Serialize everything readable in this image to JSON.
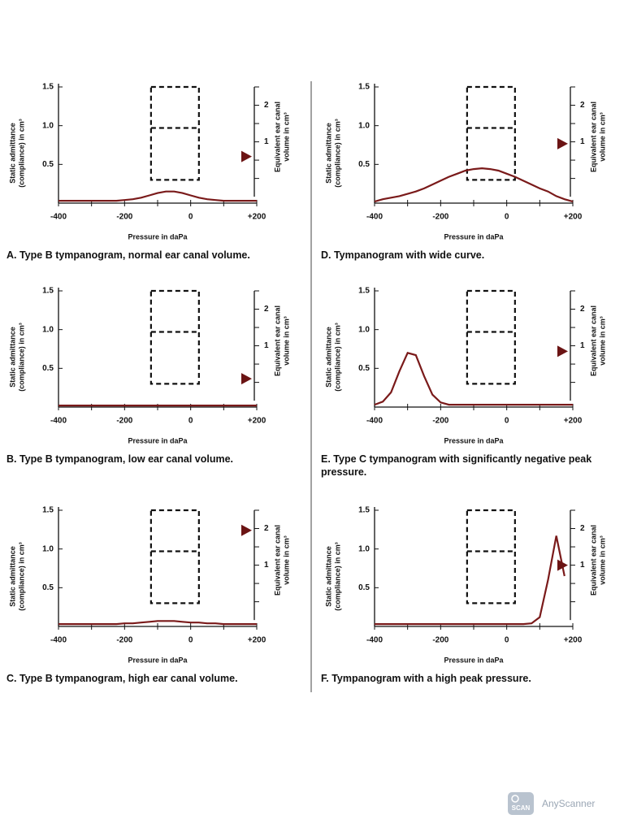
{
  "chart_data": [
    {
      "type": "line",
      "caption": "A. Type B tympanogram, normal ear canal volume.",
      "xlabel": "Pressure in daPa",
      "ylabel": [
        "Static admittance",
        "(compliance) in cm³"
      ],
      "y2label": [
        "Equivalent ear canal",
        "volume in cm³"
      ],
      "xlim": [
        -400,
        200
      ],
      "xticks": [
        -400,
        -200,
        0,
        {
          "value": 200,
          "label": "+200"
        }
      ],
      "xminorticks": [
        -300,
        -100,
        100
      ],
      "ylim": [
        0,
        1.5
      ],
      "yticks": [
        0.5,
        {
          "value": 1,
          "label": "1.0"
        },
        1.5
      ],
      "y2lim": [
        -0.5,
        2.5
      ],
      "y2ticks": [
        1,
        2
      ],
      "y2minorticks": [
        0,
        0.5,
        1.5,
        2.5
      ],
      "normal_region": {
        "x": [
          -120,
          25
        ],
        "y": [
          0.3,
          1.5
        ],
        "split": 0.97
      },
      "marker": {
        "value": 0.6,
        "color": "#6b1414"
      },
      "x": [
        -400,
        -375,
        -350,
        -325,
        -300,
        -275,
        -250,
        -225,
        -200,
        -175,
        -150,
        -125,
        -100,
        -75,
        -50,
        -25,
        0,
        25,
        50,
        75,
        100,
        125,
        150,
        175,
        200
      ],
      "series": [
        {
          "color": "#7a1a1a",
          "values": [
            0.03,
            0.03,
            0.03,
            0.03,
            0.03,
            0.03,
            0.03,
            0.03,
            0.04,
            0.05,
            0.07,
            0.1,
            0.13,
            0.15,
            0.15,
            0.13,
            0.1,
            0.07,
            0.05,
            0.04,
            0.03,
            0.03,
            0.03,
            0.03,
            0.03
          ]
        }
      ]
    },
    {
      "type": "line",
      "caption": "B. Type B tympanogram, low ear canal volume.",
      "xlabel": "Pressure in daPa",
      "ylabel": [
        "Static admittance",
        "(compliance) in cm³"
      ],
      "y2label": [
        "Equivalent ear canal",
        "volume in cm³"
      ],
      "xlim": [
        -400,
        200
      ],
      "xticks": [
        -400,
        -200,
        0,
        {
          "value": 200,
          "label": "+200"
        }
      ],
      "xminorticks": [
        -300,
        -100,
        100
      ],
      "ylim": [
        0,
        1.5
      ],
      "yticks": [
        0.5,
        {
          "value": 1,
          "label": "1.0"
        },
        1.5
      ],
      "y2lim": [
        -0.5,
        2.5
      ],
      "y2ticks": [
        1,
        2
      ],
      "y2minorticks": [
        0,
        0.5,
        1.5,
        2.5
      ],
      "normal_region": {
        "x": [
          -120,
          25
        ],
        "y": [
          0.3,
          1.5
        ],
        "split": 0.97
      },
      "marker": {
        "value": 0.1,
        "color": "#6b1414"
      },
      "x": [
        -400,
        -375,
        -350,
        -325,
        -300,
        -275,
        -250,
        -225,
        -200,
        -175,
        -150,
        -125,
        -100,
        -75,
        -50,
        -25,
        0,
        25,
        50,
        75,
        100,
        125,
        150,
        175,
        200
      ],
      "series": [
        {
          "color": "#7a1a1a",
          "values": [
            0.02,
            0.02,
            0.02,
            0.02,
            0.02,
            0.02,
            0.02,
            0.02,
            0.02,
            0.02,
            0.02,
            0.02,
            0.02,
            0.02,
            0.02,
            0.02,
            0.02,
            0.02,
            0.02,
            0.02,
            0.02,
            0.02,
            0.02,
            0.02,
            0.02
          ]
        }
      ]
    },
    {
      "type": "line",
      "caption": "C. Type B tympanogram, high ear canal volume.",
      "xlabel": "Pressure in daPa",
      "ylabel": [
        "Static admittance",
        "(compliance) in cm³"
      ],
      "y2label": [
        "Equivalent ear canal",
        "volume in cm³"
      ],
      "xlim": [
        -400,
        200
      ],
      "xticks": [
        -400,
        -200,
        0,
        {
          "value": 200,
          "label": "+200"
        }
      ],
      "xminorticks": [
        -300,
        -100,
        100
      ],
      "ylim": [
        0,
        1.5
      ],
      "yticks": [
        0.5,
        {
          "value": 1,
          "label": "1.0"
        },
        1.5
      ],
      "y2lim": [
        -0.5,
        2.5
      ],
      "y2ticks": [
        1,
        2
      ],
      "y2minorticks": [
        0,
        0.5,
        1.5,
        2.5
      ],
      "normal_region": {
        "x": [
          -120,
          25
        ],
        "y": [
          0.3,
          1.5
        ],
        "split": 0.97
      },
      "marker": {
        "value": 1.95,
        "color": "#6b1414"
      },
      "x": [
        -400,
        -375,
        -350,
        -325,
        -300,
        -275,
        -250,
        -225,
        -200,
        -175,
        -150,
        -125,
        -100,
        -75,
        -50,
        -25,
        0,
        25,
        50,
        75,
        100,
        125,
        150,
        175,
        200
      ],
      "series": [
        {
          "color": "#7a1a1a",
          "values": [
            0.03,
            0.03,
            0.03,
            0.03,
            0.03,
            0.03,
            0.03,
            0.03,
            0.04,
            0.04,
            0.05,
            0.06,
            0.07,
            0.07,
            0.07,
            0.06,
            0.05,
            0.05,
            0.04,
            0.04,
            0.03,
            0.03,
            0.03,
            0.03,
            0.03
          ]
        }
      ]
    },
    {
      "type": "line",
      "caption": "D. Tympanogram with wide curve.",
      "xlabel": "Pressure in daPa",
      "ylabel": [
        "Static admittance",
        "(compliance) in cm³"
      ],
      "y2label": [
        "Equivalent ear canal",
        "volume in cm³"
      ],
      "xlim": [
        -400,
        200
      ],
      "xticks": [
        -400,
        -200,
        0,
        {
          "value": 200,
          "label": "+200"
        }
      ],
      "xminorticks": [
        -300,
        -100,
        100
      ],
      "ylim": [
        0,
        1.5
      ],
      "yticks": [
        0.5,
        {
          "value": 1,
          "label": "1.0"
        },
        1.5
      ],
      "y2lim": [
        -0.5,
        2.5
      ],
      "y2ticks": [
        1,
        2
      ],
      "y2minorticks": [
        0,
        0.5,
        1.5,
        2.5
      ],
      "normal_region": {
        "x": [
          -120,
          25
        ],
        "y": [
          0.3,
          1.5
        ],
        "split": 0.97
      },
      "marker": {
        "value": 0.95,
        "color": "#6b1414"
      },
      "x": [
        -400,
        -375,
        -350,
        -325,
        -300,
        -275,
        -250,
        -225,
        -200,
        -175,
        -150,
        -125,
        -100,
        -75,
        -50,
        -25,
        0,
        25,
        50,
        75,
        100,
        125,
        150,
        175,
        200
      ],
      "series": [
        {
          "color": "#7a1a1a",
          "values": [
            0.02,
            0.05,
            0.07,
            0.09,
            0.12,
            0.15,
            0.19,
            0.24,
            0.29,
            0.34,
            0.38,
            0.42,
            0.44,
            0.45,
            0.44,
            0.42,
            0.38,
            0.34,
            0.29,
            0.24,
            0.19,
            0.15,
            0.09,
            0.05,
            0.02
          ]
        }
      ]
    },
    {
      "type": "line",
      "caption": "E. Type C tympanogram with significantly negative peak pressure.",
      "xlabel": "Pressure in daPa",
      "ylabel": [
        "Static admittance",
        "(compliance) in cm³"
      ],
      "y2label": [
        "Equivalent ear canal",
        "volume in cm³"
      ],
      "xlim": [
        -400,
        200
      ],
      "xticks": [
        -400,
        -200,
        0,
        {
          "value": 200,
          "label": "+200"
        }
      ],
      "xminorticks": [
        -300,
        -100,
        100
      ],
      "ylim": [
        0,
        1.5
      ],
      "yticks": [
        0.5,
        {
          "value": 1,
          "label": "1.0"
        },
        1.5
      ],
      "y2lim": [
        -0.5,
        2.5
      ],
      "y2ticks": [
        1,
        2
      ],
      "y2minorticks": [
        0,
        0.5,
        1.5,
        2.5
      ],
      "normal_region": {
        "x": [
          -120,
          25
        ],
        "y": [
          0.3,
          1.5
        ],
        "split": 0.97
      },
      "marker": {
        "value": 0.85,
        "color": "#6b1414"
      },
      "x": [
        -400,
        -375,
        -350,
        -325,
        -300,
        -275,
        -250,
        -225,
        -200,
        -175,
        -150,
        -125,
        -100,
        -75,
        -50,
        -25,
        0,
        25,
        50,
        75,
        100,
        125,
        150,
        175,
        200
      ],
      "series": [
        {
          "color": "#7a1a1a",
          "values": [
            0.03,
            0.07,
            0.19,
            0.46,
            0.7,
            0.67,
            0.4,
            0.16,
            0.06,
            0.03,
            0.03,
            0.03,
            0.03,
            0.03,
            0.03,
            0.03,
            0.03,
            0.03,
            0.03,
            0.03,
            0.03,
            0.03,
            0.03,
            0.03,
            0.03
          ]
        }
      ]
    },
    {
      "type": "line",
      "caption": "F. Tympanogram with a high peak pressure.",
      "xlabel": "Pressure in daPa",
      "ylabel": [
        "Static admittance",
        "(compliance) in cm³"
      ],
      "y2label": [
        "Equivalent ear canal",
        "volume in cm³"
      ],
      "xlim": [
        -400,
        200
      ],
      "xticks": [
        -400,
        -200,
        0,
        {
          "value": 200,
          "label": "+200"
        }
      ],
      "xminorticks": [
        -300,
        -100,
        100
      ],
      "ylim": [
        0,
        1.5
      ],
      "yticks": [
        0.5,
        {
          "value": 1,
          "label": "1.0"
        },
        1.5
      ],
      "y2lim": [
        -0.5,
        2.5
      ],
      "y2ticks": [
        1,
        2
      ],
      "y2minorticks": [
        0,
        0.5,
        1.5,
        2.5
      ],
      "normal_region": {
        "x": [
          -120,
          25
        ],
        "y": [
          0.3,
          1.5
        ],
        "split": 0.97
      },
      "marker": {
        "value": 1.0,
        "color": "#6b1414"
      },
      "x": [
        -400,
        -375,
        -350,
        -325,
        -300,
        -275,
        -250,
        -225,
        -200,
        -175,
        -150,
        -125,
        -100,
        -75,
        -50,
        -25,
        0,
        25,
        50,
        75,
        100,
        125,
        150,
        175,
        200
      ],
      "series": [
        {
          "color": "#7a1a1a",
          "values": [
            0.03,
            0.03,
            0.03,
            0.03,
            0.03,
            0.03,
            0.03,
            0.03,
            0.03,
            0.03,
            0.03,
            0.03,
            0.03,
            0.03,
            0.03,
            0.03,
            0.03,
            0.03,
            0.03,
            0.04,
            0.12,
            0.6,
            1.17,
            0.65,
            null
          ]
        }
      ]
    }
  ],
  "watermark": {
    "icon": "SCAN",
    "text": "AnyScanner"
  }
}
